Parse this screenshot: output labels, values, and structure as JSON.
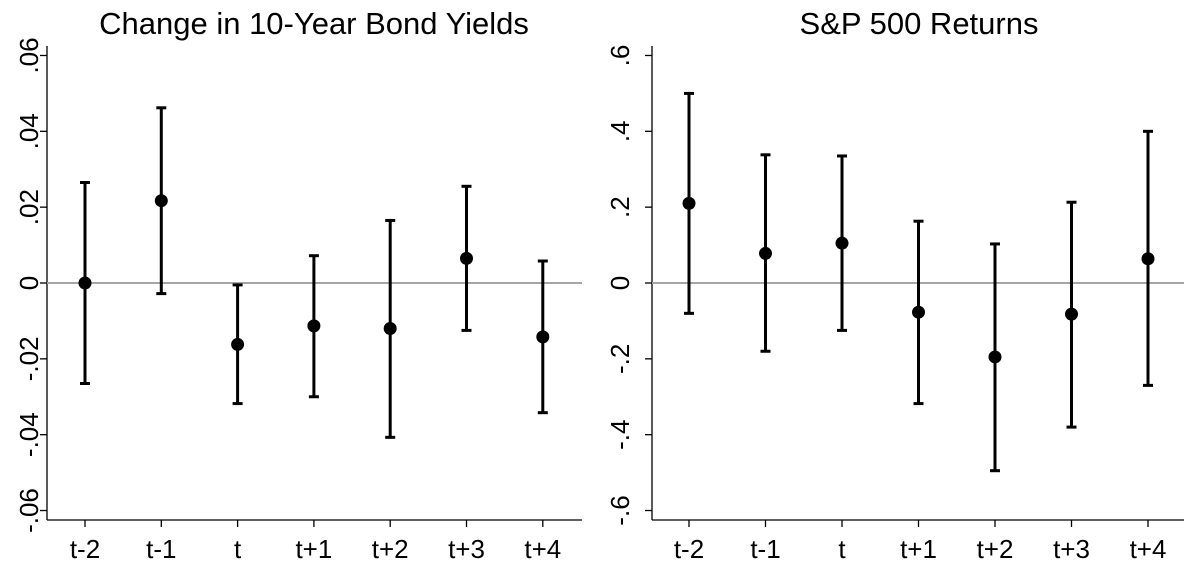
{
  "chart_data": [
    {
      "type": "scatter",
      "title": "Change in 10-Year Bond Yields",
      "xlabel": "",
      "ylabel": "",
      "categories": [
        "t-2",
        "t-1",
        "t",
        "t+1",
        "t+2",
        "t+3",
        "t+4"
      ],
      "ytick_values": [
        -0.06,
        -0.04,
        -0.02,
        0,
        0.02,
        0.04,
        0.06
      ],
      "ytick_labels": [
        "-.06",
        "-.04",
        "-.02",
        "0",
        ".02",
        ".04",
        ".06"
      ],
      "ylim": [
        -0.0625,
        0.0625
      ],
      "reference_line": 0,
      "series": [
        {
          "estimate": [
            0.0,
            0.0217,
            -0.0162,
            -0.0113,
            -0.012,
            0.0065,
            -0.0142
          ],
          "ci_upper": [
            0.0265,
            0.0462,
            -0.0005,
            0.0072,
            0.0165,
            0.0255,
            0.0058
          ],
          "ci_lower": [
            -0.0265,
            -0.0028,
            -0.0318,
            -0.03,
            -0.0407,
            -0.0125,
            -0.0342
          ]
        }
      ],
      "grid": false,
      "point_color": "#000000",
      "reference_line_color": "#a6a6a6"
    },
    {
      "type": "scatter",
      "title": "S&P 500 Returns",
      "xlabel": "",
      "ylabel": "",
      "categories": [
        "t-2",
        "t-1",
        "t",
        "t+1",
        "t+2",
        "t+3",
        "t+4"
      ],
      "ytick_values": [
        -0.6,
        -0.4,
        -0.2,
        0,
        0.2,
        0.4,
        0.6
      ],
      "ytick_labels": [
        "-.6",
        "-.4",
        "-.2",
        "0",
        ".2",
        ".4",
        ".6"
      ],
      "ylim": [
        -0.625,
        0.625
      ],
      "reference_line": 0,
      "series": [
        {
          "estimate": [
            0.21,
            0.078,
            0.105,
            -0.077,
            -0.195,
            -0.082,
            0.064
          ],
          "ci_upper": [
            0.5,
            0.338,
            0.335,
            0.163,
            0.103,
            0.213,
            0.4
          ],
          "ci_lower": [
            -0.08,
            -0.18,
            -0.125,
            -0.318,
            -0.495,
            -0.38,
            -0.27
          ]
        }
      ],
      "grid": false,
      "point_color": "#000000",
      "reference_line_color": "#a6a6a6"
    }
  ]
}
